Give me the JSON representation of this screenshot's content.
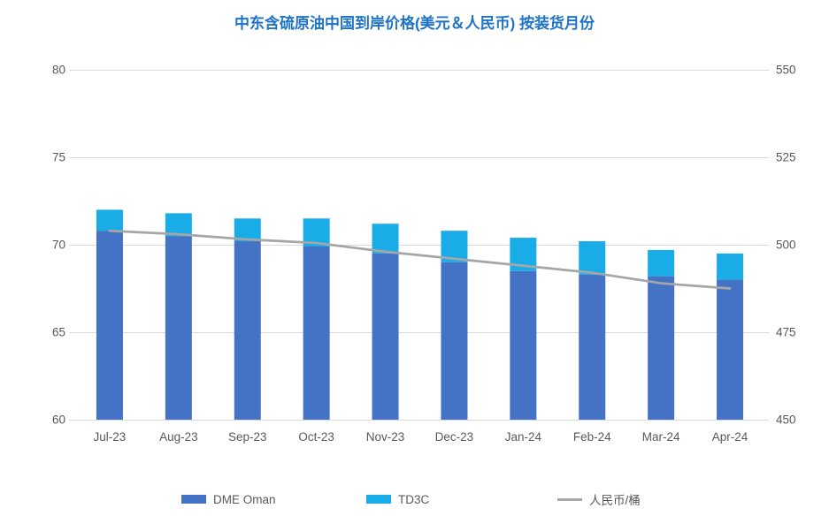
{
  "title": "中东含硫原油中国到岸价格(美元＆人民币) 按装货月份",
  "colors": {
    "title": "#1E73C6",
    "dme_oman": "#4472C4",
    "td3c": "#19ACE6",
    "rmb_line": "#A6A6A6",
    "gridline": "#D9D9D9",
    "axis_text": "#595959",
    "background": "#FFFFFF"
  },
  "chart_data": {
    "type": "bar",
    "stacked": true,
    "title": "中东含硫原油中国到岸价格(美元＆人民币) 按装货月份",
    "categories": [
      "Jul-23",
      "Aug-23",
      "Sep-23",
      "Oct-23",
      "Nov-23",
      "Dec-23",
      "Jan-24",
      "Feb-24",
      "Mar-24",
      "Apr-24"
    ],
    "series": [
      {
        "name": "DME Oman",
        "axis": "left",
        "values": [
          70.8,
          70.5,
          70.2,
          69.9,
          69.5,
          69.0,
          68.5,
          68.3,
          68.2,
          68.0
        ]
      },
      {
        "name": "TD3C",
        "axis": "left",
        "values": [
          1.2,
          1.3,
          1.3,
          1.6,
          1.7,
          1.8,
          1.9,
          1.9,
          1.5,
          1.5
        ]
      }
    ],
    "stack_totals": [
      72.0,
      71.8,
      71.5,
      71.5,
      71.2,
      70.8,
      70.4,
      70.2,
      69.7,
      69.5
    ],
    "line_series": {
      "name": "人民币/桶",
      "axis": "right",
      "values": [
        504,
        503,
        501.5,
        500.5,
        498,
        496,
        494,
        492,
        489,
        487.5
      ]
    },
    "left_axis": {
      "min": 60,
      "max": 80,
      "ticks": [
        60,
        65,
        70,
        75,
        80
      ]
    },
    "right_axis": {
      "min": 450,
      "max": 550,
      "ticks": [
        450,
        475,
        500,
        525,
        550
      ]
    },
    "grid": true,
    "legend_position": "bottom"
  },
  "legend": {
    "items": [
      {
        "label": "DME Oman",
        "type": "swatch"
      },
      {
        "label": "TD3C",
        "type": "swatch"
      },
      {
        "label": "人民币/桶",
        "type": "line"
      }
    ]
  }
}
